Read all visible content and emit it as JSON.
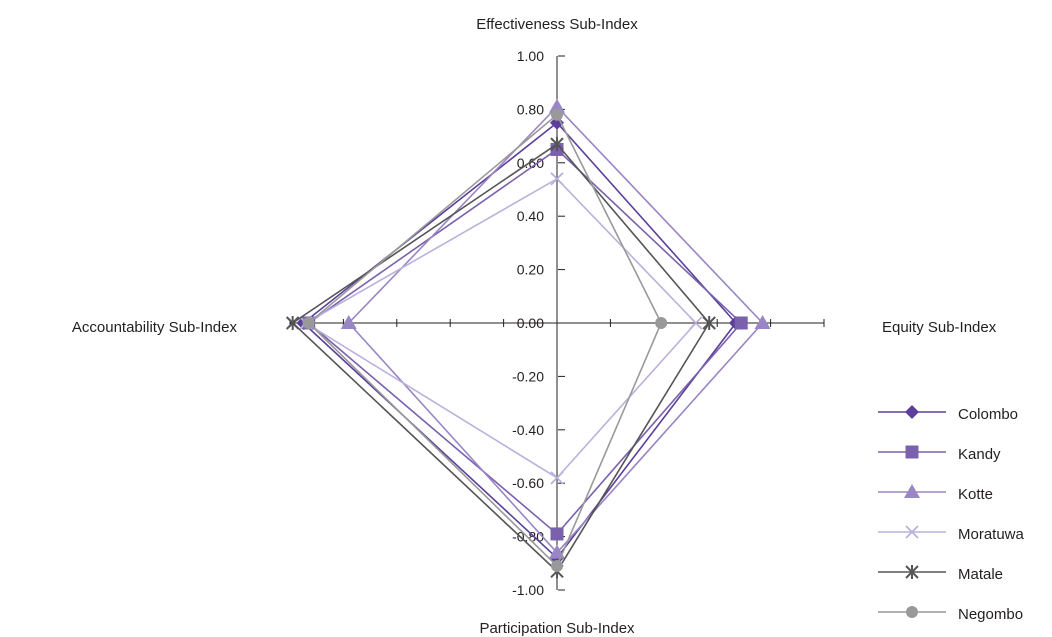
{
  "chart_data": {
    "type": "radar",
    "axes": [
      "Effectiveness Sub-Index",
      "Equity Sub-Index",
      "Participation Sub-Index",
      "Accountability Sub-Index"
    ],
    "rlim": [
      -1.0,
      1.0
    ],
    "tick_labels": [
      "1.00",
      "0.80",
      "0.60",
      "0.40",
      "0.20",
      "0.00",
      "-0.20",
      "-0.40",
      "-0.60",
      "-0.80",
      "-1.00"
    ],
    "tick_values": [
      1.0,
      0.8,
      0.6,
      0.4,
      0.2,
      0.0,
      -0.2,
      -0.4,
      -0.6,
      -0.8,
      -1.0
    ],
    "legend_position": "right",
    "series": [
      {
        "name": "Colombo",
        "values": [
          0.75,
          0.67,
          0.88,
          0.95
        ],
        "color": "#5b3f9a",
        "marker": "diamond"
      },
      {
        "name": "Kandy",
        "values": [
          0.65,
          0.69,
          0.79,
          0.93
        ],
        "color": "#7a61ad",
        "marker": "square"
      },
      {
        "name": "Kotte",
        "values": [
          0.81,
          0.77,
          0.86,
          0.78
        ],
        "color": "#9a86c4",
        "marker": "triangle"
      },
      {
        "name": "Moratuwa",
        "values": [
          0.54,
          0.52,
          0.58,
          0.94
        ],
        "color": "#bcb1dc",
        "marker": "x"
      },
      {
        "name": "Matale",
        "values": [
          0.67,
          0.57,
          0.93,
          0.99
        ],
        "color": "#555555",
        "marker": "star"
      },
      {
        "name": "Negombo",
        "values": [
          0.78,
          0.39,
          0.91,
          0.93
        ],
        "color": "#999999",
        "marker": "circle"
      }
    ]
  }
}
